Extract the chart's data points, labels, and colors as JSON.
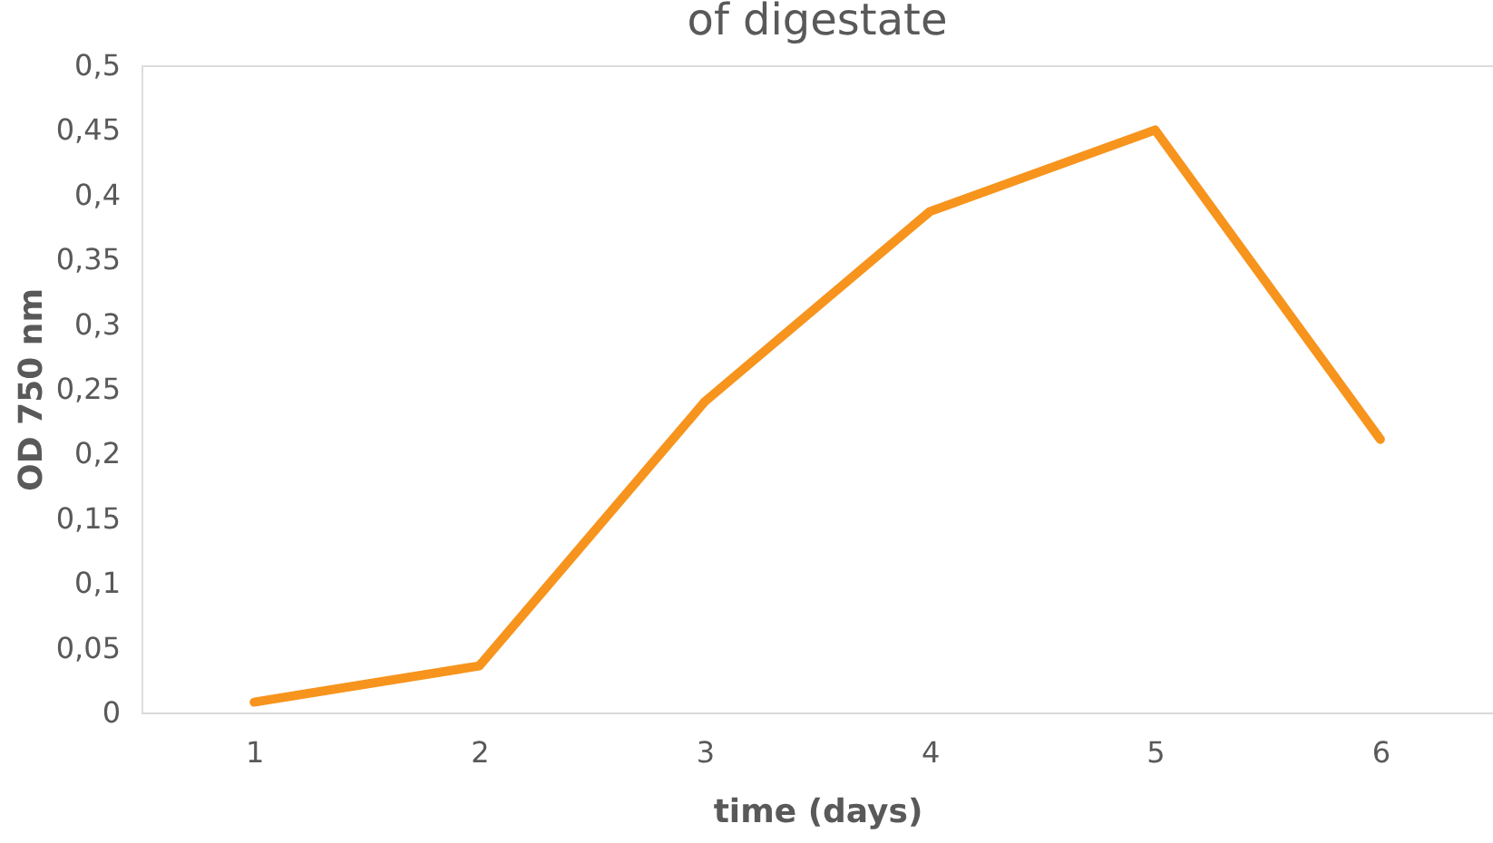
{
  "chart_data": {
    "type": "line",
    "title": "of digestate",
    "xlabel": "time (days)",
    "ylabel": "OD 750 nm",
    "categories": [
      "1",
      "2",
      "3",
      "4",
      "5",
      "6"
    ],
    "series": [
      {
        "color": "#f7941d",
        "values": [
          0.008,
          0.036,
          0.24,
          0.387,
          0.45,
          0.211
        ]
      }
    ],
    "ylim": [
      0,
      0.5
    ],
    "yticks": [
      0,
      {
        "value": 0.05,
        "label": "0,05"
      },
      {
        "value": 0.1,
        "label": "0,1"
      },
      {
        "value": 0.15,
        "label": "0,15"
      },
      {
        "value": 0.2,
        "label": "0,2"
      },
      {
        "value": 0.25,
        "label": "0,25"
      },
      {
        "value": 0.3,
        "label": "0,3"
      },
      {
        "value": 0.35,
        "label": "0,35"
      },
      {
        "value": 0.4,
        "label": "0,4"
      },
      {
        "value": 0.45,
        "label": "0,45"
      },
      {
        "value": 0.5,
        "label": "0,5"
      }
    ],
    "grid": false,
    "legend": false,
    "marker": "none",
    "line_style": "solid"
  }
}
